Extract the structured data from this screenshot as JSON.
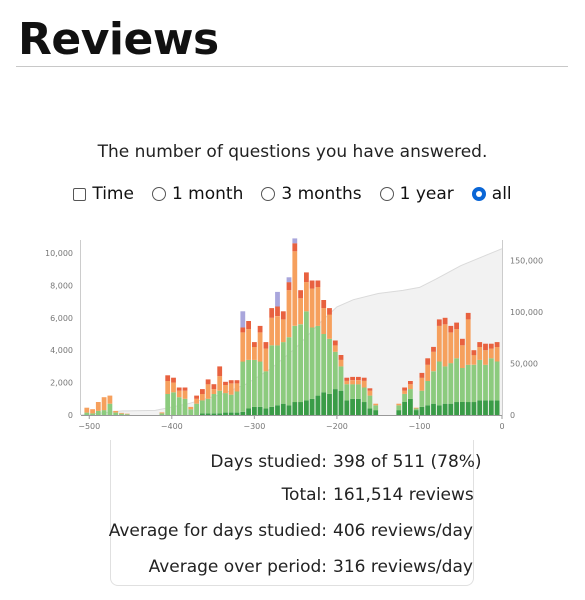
{
  "page": {
    "title": "Reviews",
    "subtitle": "The number of questions you have answered."
  },
  "controls": {
    "time_label": "Time",
    "time_checked": false,
    "ranges": [
      {
        "label": "1 month",
        "selected": false
      },
      {
        "label": "3 months",
        "selected": false
      },
      {
        "label": "1 year",
        "selected": false
      },
      {
        "label": "all",
        "selected": true
      }
    ]
  },
  "stats": [
    {
      "label": "Days studied:",
      "value": "398 of 511 (78%)"
    },
    {
      "label": "Total:",
      "value": "161,514 reviews"
    },
    {
      "label": "Average for days studied:",
      "value": "406 reviews/day"
    },
    {
      "label": "Average over period:",
      "value": "316 reviews/day"
    }
  ],
  "colors": {
    "mature": "#3a9c47",
    "young": "#8ccb7e",
    "learn": "#f6a05d",
    "relearn": "#e8613f",
    "filtered": "#a9a6dc",
    "cumulative": "#f2f2f2"
  },
  "chart_data": {
    "type": "bar",
    "stacked": true,
    "xlim": [
      -510,
      0
    ],
    "x_ticks": [
      -500,
      -400,
      -300,
      -200,
      -100,
      0
    ],
    "y_ticks": [
      0,
      2000,
      4000,
      6000,
      8000,
      10000
    ],
    "y_tick_labels": [
      "0",
      "2,000",
      "4,000",
      "6,000",
      "8,000",
      "10,000"
    ],
    "ylim": [
      0,
      10800
    ],
    "y2_ticks": [
      0,
      50000,
      100000,
      150000
    ],
    "y2_tick_labels": [
      "0",
      "50,000",
      "100,000",
      "150,000"
    ],
    "y2lim": [
      0,
      170000
    ],
    "bin_width": 7,
    "series_names": [
      "mature",
      "young",
      "learn",
      "relearn",
      "filtered"
    ],
    "bins": [
      {
        "x": -503,
        "v": [
          0,
          150,
          300,
          0,
          0
        ]
      },
      {
        "x": -496,
        "v": [
          0,
          100,
          260,
          0,
          0
        ]
      },
      {
        "x": -489,
        "v": [
          0,
          250,
          550,
          0,
          0
        ]
      },
      {
        "x": -482,
        "v": [
          0,
          300,
          800,
          0,
          0
        ]
      },
      {
        "x": -475,
        "v": [
          0,
          700,
          500,
          0,
          0
        ]
      },
      {
        "x": -468,
        "v": [
          0,
          150,
          100,
          0,
          0
        ]
      },
      {
        "x": -461,
        "v": [
          0,
          80,
          50,
          0,
          0
        ]
      },
      {
        "x": -454,
        "v": [
          0,
          50,
          30,
          0,
          0
        ]
      },
      {
        "x": -412,
        "v": [
          0,
          100,
          60,
          0,
          0
        ]
      },
      {
        "x": -405,
        "v": [
          0,
          1300,
          800,
          350,
          0
        ]
      },
      {
        "x": -398,
        "v": [
          0,
          1400,
          600,
          300,
          0
        ]
      },
      {
        "x": -391,
        "v": [
          0,
          1100,
          400,
          200,
          0
        ]
      },
      {
        "x": -384,
        "v": [
          0,
          1000,
          500,
          200,
          0
        ]
      },
      {
        "x": -377,
        "v": [
          0,
          350,
          150,
          0,
          0
        ]
      },
      {
        "x": -370,
        "v": [
          0,
          700,
          300,
          200,
          0
        ]
      },
      {
        "x": -363,
        "v": [
          100,
          800,
          400,
          300,
          0
        ]
      },
      {
        "x": -356,
        "v": [
          100,
          900,
          900,
          300,
          0
        ]
      },
      {
        "x": -349,
        "v": [
          100,
          1200,
          300,
          300,
          0
        ]
      },
      {
        "x": -342,
        "v": [
          100,
          1400,
          900,
          600,
          0
        ]
      },
      {
        "x": -335,
        "v": [
          150,
          1200,
          500,
          200,
          0
        ]
      },
      {
        "x": -328,
        "v": [
          150,
          1100,
          700,
          200,
          0
        ]
      },
      {
        "x": -321,
        "v": [
          150,
          1300,
          500,
          200,
          0
        ]
      },
      {
        "x": -314,
        "v": [
          200,
          3100,
          1800,
          300,
          1000
        ]
      },
      {
        "x": -307,
        "v": [
          400,
          3000,
          1900,
          500,
          0
        ]
      },
      {
        "x": -300,
        "v": [
          500,
          2900,
          800,
          300,
          0
        ]
      },
      {
        "x": -293,
        "v": [
          500,
          2800,
          1800,
          400,
          0
        ]
      },
      {
        "x": -286,
        "v": [
          400,
          2300,
          1400,
          400,
          0
        ]
      },
      {
        "x": -279,
        "v": [
          500,
          3800,
          1700,
          600,
          0
        ]
      },
      {
        "x": -272,
        "v": [
          600,
          3700,
          1800,
          600,
          900
        ]
      },
      {
        "x": -265,
        "v": [
          700,
          3800,
          1400,
          500,
          0
        ]
      },
      {
        "x": -258,
        "v": [
          600,
          4200,
          2900,
          500,
          300
        ]
      },
      {
        "x": -251,
        "v": [
          800,
          4700,
          4600,
          500,
          300
        ]
      },
      {
        "x": -244,
        "v": [
          800,
          4800,
          1600,
          500,
          0
        ]
      },
      {
        "x": -237,
        "v": [
          900,
          5500,
          1800,
          600,
          0
        ]
      },
      {
        "x": -230,
        "v": [
          1000,
          4400,
          2400,
          500,
          0
        ]
      },
      {
        "x": -223,
        "v": [
          1200,
          4300,
          2400,
          400,
          0
        ]
      },
      {
        "x": -216,
        "v": [
          1400,
          3600,
          1600,
          500,
          0
        ]
      },
      {
        "x": -209,
        "v": [
          1300,
          3400,
          1500,
          400,
          0
        ]
      },
      {
        "x": -202,
        "v": [
          1600,
          2300,
          400,
          300,
          0
        ]
      },
      {
        "x": -195,
        "v": [
          1500,
          1500,
          400,
          300,
          0
        ]
      },
      {
        "x": -188,
        "v": [
          900,
          1000,
          200,
          200,
          0
        ]
      },
      {
        "x": -181,
        "v": [
          1000,
          900,
          250,
          200,
          0
        ]
      },
      {
        "x": -174,
        "v": [
          1000,
          900,
          250,
          200,
          0
        ]
      },
      {
        "x": -167,
        "v": [
          800,
          900,
          400,
          200,
          0
        ]
      },
      {
        "x": -160,
        "v": [
          400,
          800,
          300,
          150,
          0
        ]
      },
      {
        "x": -153,
        "v": [
          300,
          300,
          100,
          0,
          0
        ]
      },
      {
        "x": -125,
        "v": [
          300,
          300,
          100,
          0,
          0
        ]
      },
      {
        "x": -118,
        "v": [
          800,
          500,
          200,
          200,
          0
        ]
      },
      {
        "x": -111,
        "v": [
          1000,
          600,
          300,
          200,
          0
        ]
      },
      {
        "x": -104,
        "v": [
          300,
          100,
          50,
          0,
          0
        ]
      },
      {
        "x": -97,
        "v": [
          500,
          1000,
          800,
          300,
          0
        ]
      },
      {
        "x": -90,
        "v": [
          600,
          1500,
          1000,
          400,
          0
        ]
      },
      {
        "x": -83,
        "v": [
          700,
          2000,
          1200,
          300,
          0
        ]
      },
      {
        "x": -76,
        "v": [
          600,
          2700,
          2200,
          400,
          0
        ]
      },
      {
        "x": -69,
        "v": [
          700,
          2300,
          2600,
          400,
          0
        ]
      },
      {
        "x": -62,
        "v": [
          700,
          2500,
          1900,
          400,
          0
        ]
      },
      {
        "x": -55,
        "v": [
          800,
          2700,
          1800,
          400,
          0
        ]
      },
      {
        "x": -48,
        "v": [
          800,
          2100,
          1400,
          400,
          0
        ]
      },
      {
        "x": -41,
        "v": [
          800,
          2300,
          2800,
          400,
          0
        ]
      },
      {
        "x": -34,
        "v": [
          800,
          2300,
          600,
          300,
          0
        ]
      },
      {
        "x": -27,
        "v": [
          900,
          2500,
          800,
          300,
          0
        ]
      },
      {
        "x": -20,
        "v": [
          900,
          2200,
          900,
          400,
          0
        ]
      },
      {
        "x": -13,
        "v": [
          900,
          2600,
          600,
          300,
          0
        ]
      },
      {
        "x": -6,
        "v": [
          900,
          2400,
          900,
          300,
          0
        ]
      }
    ],
    "cumulative": [
      {
        "x": -510,
        "y": 0
      },
      {
        "x": -460,
        "y": 4000
      },
      {
        "x": -420,
        "y": 4500
      },
      {
        "x": -380,
        "y": 11000
      },
      {
        "x": -340,
        "y": 20000
      },
      {
        "x": -310,
        "y": 30000
      },
      {
        "x": -280,
        "y": 45000
      },
      {
        "x": -250,
        "y": 65000
      },
      {
        "x": -220,
        "y": 90000
      },
      {
        "x": -200,
        "y": 105000
      },
      {
        "x": -180,
        "y": 112000
      },
      {
        "x": -150,
        "y": 118000
      },
      {
        "x": -120,
        "y": 121000
      },
      {
        "x": -100,
        "y": 124000
      },
      {
        "x": -80,
        "y": 132000
      },
      {
        "x": -50,
        "y": 145000
      },
      {
        "x": -20,
        "y": 155000
      },
      {
        "x": 0,
        "y": 161514
      }
    ]
  }
}
